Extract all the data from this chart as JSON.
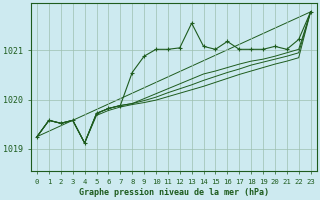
{
  "background_color": "#cdeaf0",
  "grid_color": "#9dbfb0",
  "line_color": "#1e5c1e",
  "title": "Graphe pression niveau de la mer (hPa)",
  "ylabel_ticks": [
    1019,
    1020,
    1021
  ],
  "xlim": [
    -0.5,
    23.5
  ],
  "ylim": [
    1018.55,
    1021.95
  ],
  "x_ticks": [
    0,
    1,
    2,
    3,
    4,
    5,
    6,
    7,
    8,
    9,
    10,
    11,
    12,
    13,
    14,
    15,
    16,
    17,
    18,
    19,
    20,
    21,
    22,
    23
  ],
  "series_with_markers": [
    1019.25,
    1019.58,
    1019.52,
    1019.58,
    1019.12,
    1019.72,
    1019.82,
    1019.88,
    1020.55,
    1020.88,
    1021.02,
    1021.02,
    1021.05,
    1021.55,
    1021.08,
    1021.02,
    1021.18,
    1021.02,
    1021.02,
    1021.02,
    1021.08,
    1021.02,
    1021.22,
    1021.78
  ],
  "line2": [
    1019.25,
    1019.58,
    1019.52,
    1019.58,
    1019.12,
    1019.72,
    1019.82,
    1019.88,
    1019.92,
    1020.02,
    1020.12,
    1020.22,
    1020.32,
    1020.42,
    1020.52,
    1020.58,
    1020.65,
    1020.72,
    1020.78,
    1020.82,
    1020.88,
    1020.95,
    1021.02,
    1021.78
  ],
  "line3": [
    1019.25,
    1019.58,
    1019.52,
    1019.58,
    1019.12,
    1019.72,
    1019.82,
    1019.88,
    1019.92,
    1019.98,
    1020.05,
    1020.14,
    1020.22,
    1020.3,
    1020.39,
    1020.47,
    1020.55,
    1020.62,
    1020.7,
    1020.76,
    1020.82,
    1020.88,
    1020.95,
    1021.78
  ],
  "line4": [
    1019.25,
    1019.58,
    1019.52,
    1019.58,
    1019.12,
    1019.68,
    1019.78,
    1019.85,
    1019.9,
    1019.94,
    1019.99,
    1020.06,
    1020.13,
    1020.2,
    1020.27,
    1020.35,
    1020.43,
    1020.51,
    1020.58,
    1020.65,
    1020.72,
    1020.78,
    1020.85,
    1021.78
  ],
  "line5_straight": [
    1019.25,
    1021.78
  ]
}
